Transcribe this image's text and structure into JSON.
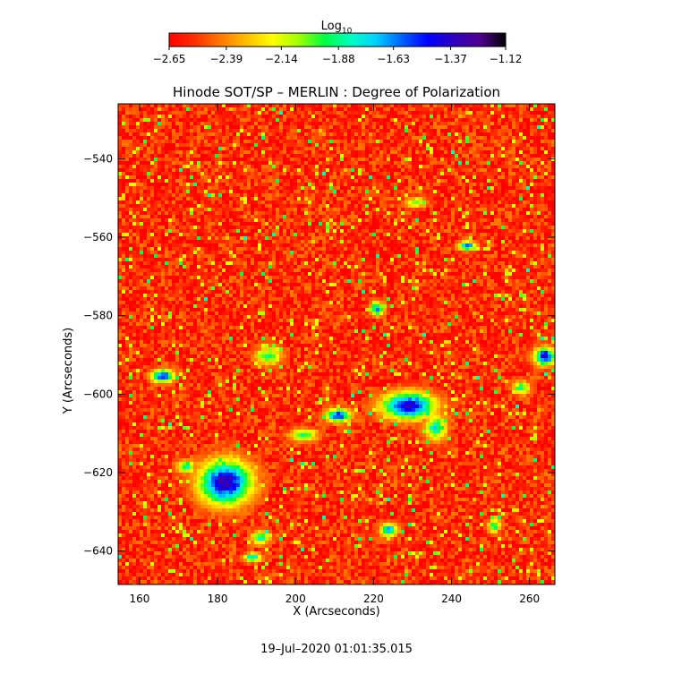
{
  "colorbar": {
    "label_main": "Log",
    "label_sub": "10",
    "ticks": [
      -2.65,
      -2.39,
      -2.14,
      -1.88,
      -1.63,
      -1.37,
      -1.12
    ],
    "tick_labels": [
      "−2.65",
      "−2.39",
      "−2.14",
      "−1.88",
      "−1.63",
      "−1.37",
      "−1.12"
    ],
    "colors": [
      "#ff0000",
      "#ff3000",
      "#ff7a00",
      "#ffc000",
      "#ffff00",
      "#a0ff00",
      "#00ff40",
      "#00ffc0",
      "#00d0ff",
      "#0060ff",
      "#0000ff",
      "#3000c0",
      "#500090",
      "#000000"
    ]
  },
  "footer": {
    "timestamp": "19–Jul–2020 01:01:35.015"
  },
  "chart_data": {
    "type": "heatmap",
    "title": "Hinode SOT/SP – MERLIN : Degree of Polarization",
    "xlabel": "X (Arcseconds)",
    "ylabel": "Y (Arcseconds)",
    "xlim": [
      154.5,
      266.5
    ],
    "ylim": [
      -648.5,
      -526
    ],
    "x_ticks": [
      160,
      180,
      200,
      220,
      240,
      260
    ],
    "y_ticks": [
      -540,
      -560,
      -580,
      -600,
      -620,
      -640
    ],
    "x_tick_labels": [
      "160",
      "180",
      "200",
      "220",
      "240",
      "260"
    ],
    "y_tick_labels": [
      "−540",
      "−560",
      "−580",
      "−600",
      "−620",
      "−640"
    ],
    "value_range": [
      -2.65,
      -1.12
    ],
    "background_level": -2.55,
    "strong_regions": [
      {
        "x": 182,
        "y": -622,
        "rx": 6,
        "ry": 5,
        "peak": -1.3
      },
      {
        "x": 229,
        "y": -602.5,
        "rx": 6,
        "ry": 3,
        "peak": -1.35
      },
      {
        "x": 211,
        "y": -605,
        "rx": 3,
        "ry": 1.5,
        "peak": -1.5
      },
      {
        "x": 166,
        "y": -595,
        "rx": 2.5,
        "ry": 1.5,
        "peak": -1.45
      },
      {
        "x": 264,
        "y": -590,
        "rx": 2.5,
        "ry": 2,
        "peak": -1.4
      },
      {
        "x": 193,
        "y": -590,
        "rx": 3,
        "ry": 2,
        "peak": -1.9
      },
      {
        "x": 236,
        "y": -608,
        "rx": 2.5,
        "ry": 3,
        "peak": -1.8
      },
      {
        "x": 191,
        "y": -636,
        "rx": 2,
        "ry": 1.5,
        "peak": -1.8
      },
      {
        "x": 224,
        "y": -634,
        "rx": 2,
        "ry": 1.5,
        "peak": -1.7
      },
      {
        "x": 244,
        "y": -562,
        "rx": 2,
        "ry": 1,
        "peak": -1.55
      },
      {
        "x": 221,
        "y": -578,
        "rx": 1.5,
        "ry": 1.5,
        "peak": -1.65
      },
      {
        "x": 202,
        "y": -610,
        "rx": 3,
        "ry": 1.5,
        "peak": -1.9
      },
      {
        "x": 251,
        "y": -633,
        "rx": 1.5,
        "ry": 1.5,
        "peak": -1.9
      },
      {
        "x": 172,
        "y": -618,
        "rx": 2,
        "ry": 1.5,
        "peak": -1.85
      },
      {
        "x": 258,
        "y": -598,
        "rx": 2,
        "ry": 1.5,
        "peak": -1.9
      },
      {
        "x": 231,
        "y": -551,
        "rx": 2.5,
        "ry": 1,
        "peak": -1.95
      },
      {
        "x": 189,
        "y": -641,
        "rx": 2,
        "ry": 1,
        "peak": -1.75
      }
    ]
  }
}
